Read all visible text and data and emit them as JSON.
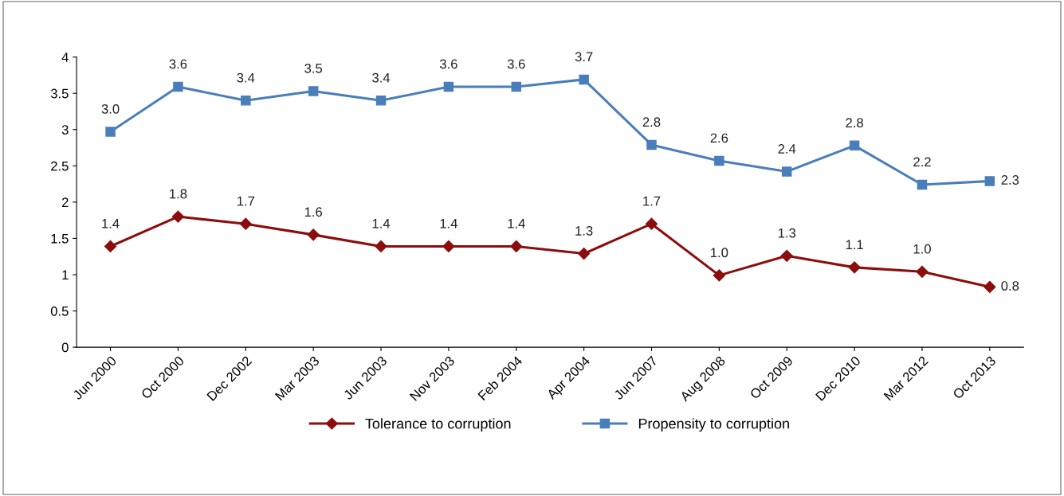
{
  "chart_data": {
    "type": "line",
    "categories": [
      "Jun 2000",
      "Oct 2000",
      "Dec 2002",
      "Mar 2003",
      "Jun 2003",
      "Nov 2003",
      "Feb 2004",
      "Apr 2004",
      "Jun 2007",
      "Aug 2008",
      "Oct 2009",
      "Dec 2010",
      "Mar 2012",
      "Oct 2013"
    ],
    "series": [
      {
        "name": "Tolerance to corruption",
        "color": "#8b0d0d",
        "marker": "diamond",
        "values": [
          1.39,
          1.8,
          1.7,
          1.55,
          1.39,
          1.39,
          1.39,
          1.29,
          1.7,
          0.99,
          1.26,
          1.1,
          1.04,
          0.83
        ],
        "value_labels": [
          "1.4",
          "1.8",
          "1.7",
          "1.6",
          "1.4",
          "1.4",
          "1.4",
          "1.3",
          "1.7",
          "1.0",
          "1.3",
          "1.1",
          "1.0",
          "0.8"
        ]
      },
      {
        "name": "Propensity to corruption",
        "color": "#4a7ebb",
        "marker": "square",
        "values": [
          2.97,
          3.59,
          3.4,
          3.53,
          3.4,
          3.59,
          3.59,
          3.69,
          2.79,
          2.57,
          2.42,
          2.78,
          2.24,
          2.29
        ],
        "value_labels": [
          "3.0",
          "3.6",
          "3.4",
          "3.5",
          "3.4",
          "3.6",
          "3.6",
          "3.7",
          "2.8",
          "2.6",
          "2.4",
          "2.8",
          "2.2",
          "2.3"
        ]
      }
    ],
    "ylim": [
      0,
      4
    ],
    "yticks": [
      0,
      0.5,
      1,
      1.5,
      2,
      2.5,
      3,
      3.5,
      4
    ],
    "grid": false,
    "legend": "bottom",
    "line_style": "solid"
  }
}
